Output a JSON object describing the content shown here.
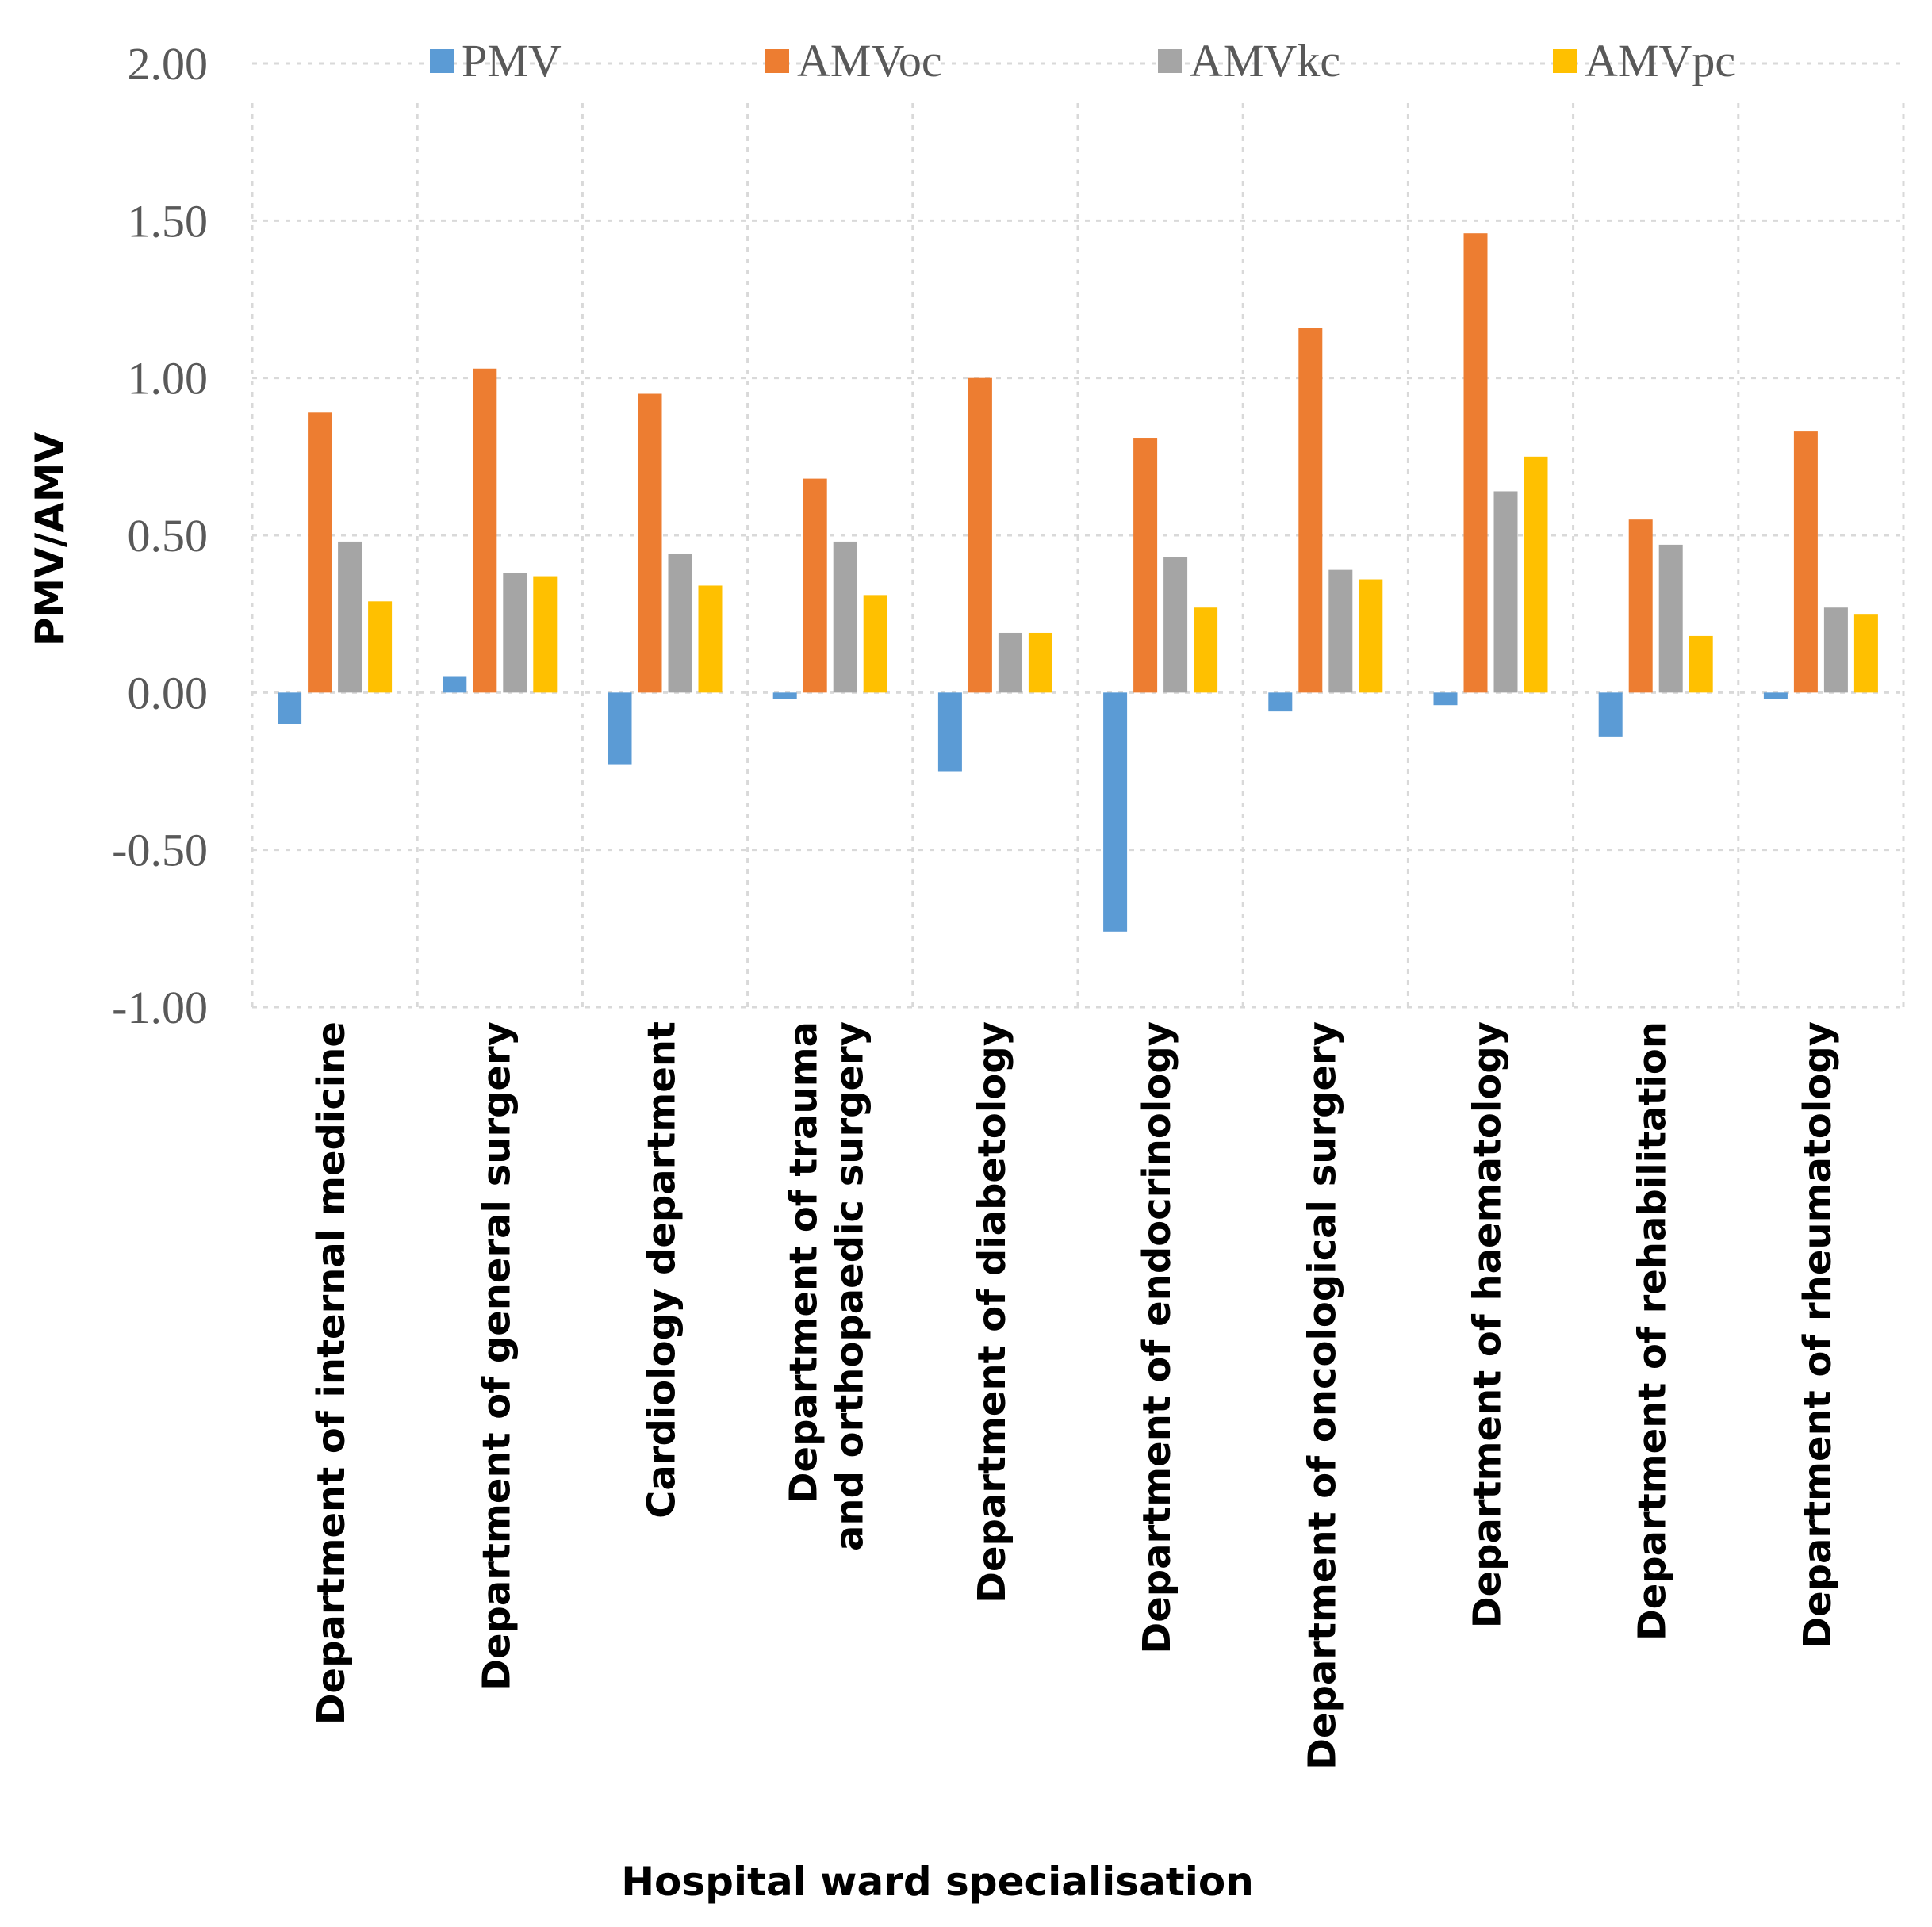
{
  "chart_data": {
    "type": "bar",
    "title": "",
    "xlabel": "Hospital ward specialisation",
    "ylabel": "PMV/AMV",
    "ylim": [
      -1.0,
      2.0
    ],
    "yticks": [
      "2.00",
      "1.50",
      "1.00",
      "0.50",
      "0.00",
      "-0.50",
      "-1.00"
    ],
    "ytick_values": [
      2.0,
      1.5,
      1.0,
      0.5,
      0.0,
      -0.5,
      -1.0
    ],
    "grid": true,
    "legend_position": "top",
    "categories": [
      [
        "Department of internal medicine"
      ],
      [
        "Department of general surgery"
      ],
      [
        "Cardiology department"
      ],
      [
        "Department of trauma",
        "and orthopaedic surgery"
      ],
      [
        "Department of diabetology"
      ],
      [
        "Department of endocrinology"
      ],
      [
        "Department of oncological surgery"
      ],
      [
        "Department of haematology"
      ],
      [
        "Department of rehabilitation"
      ],
      [
        "Department of rheumatology"
      ]
    ],
    "series": [
      {
        "name": "PMV",
        "color": "#5b9bd5",
        "values": [
          -0.1,
          0.05,
          -0.23,
          -0.02,
          -0.25,
          -0.76,
          -0.06,
          -0.04,
          -0.14,
          -0.02
        ]
      },
      {
        "name": "AMVoc",
        "color": "#ed7d31",
        "values": [
          0.89,
          1.03,
          0.95,
          0.68,
          1.0,
          0.81,
          1.16,
          1.46,
          0.55,
          0.83
        ]
      },
      {
        "name": "AMVkc",
        "color": "#a5a5a5",
        "values": [
          0.48,
          0.38,
          0.44,
          0.48,
          0.19,
          0.43,
          0.39,
          0.64,
          0.47,
          0.27
        ]
      },
      {
        "name": "AMVpc",
        "color": "#ffc000",
        "values": [
          0.29,
          0.37,
          0.34,
          0.31,
          0.19,
          0.27,
          0.36,
          0.75,
          0.18,
          0.25
        ]
      }
    ]
  }
}
